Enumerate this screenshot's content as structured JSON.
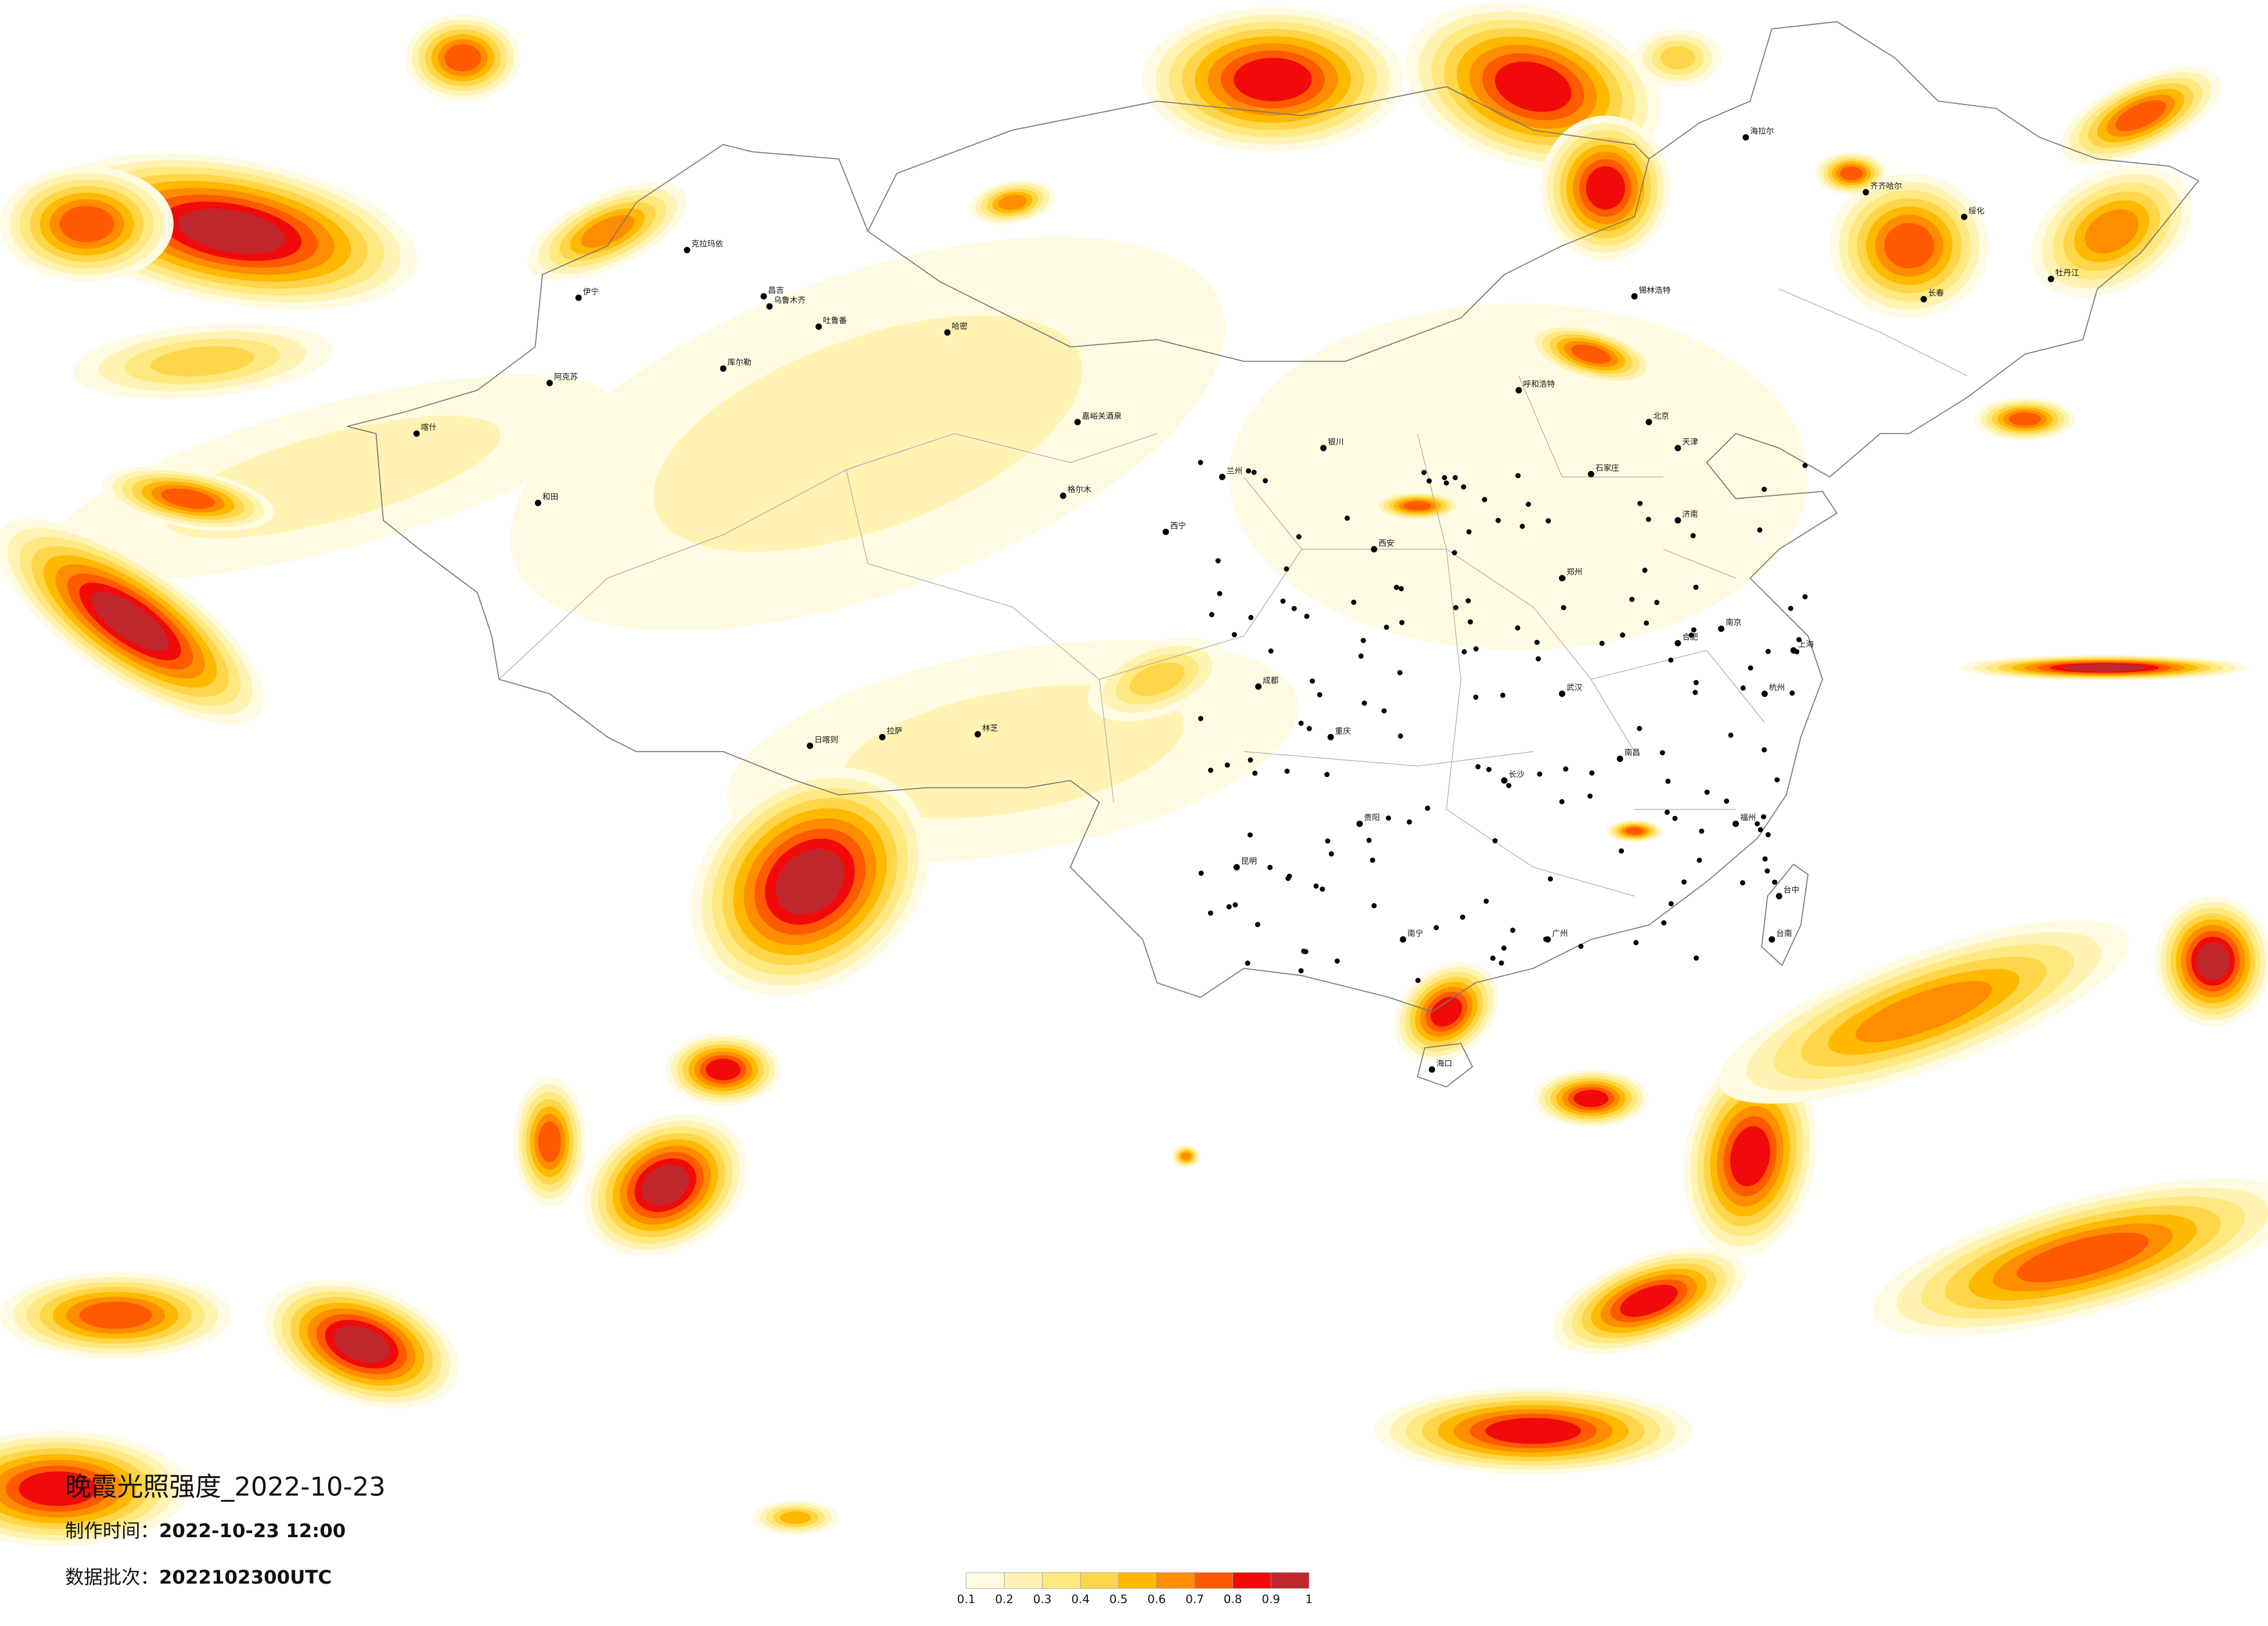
{
  "map": {
    "title": "晚霞光照强度_2022-10-23",
    "info": [
      {
        "label": "制作时间：",
        "value": "2022-10-23 12:00"
      },
      {
        "label": "数据批次：",
        "value": "2022102300UTC"
      }
    ],
    "colorbar": {
      "ticks": [
        0.1,
        0.2,
        0.3,
        0.4,
        0.5,
        0.6,
        0.7,
        0.8,
        0.9,
        1
      ],
      "colors": [
        "#fffbe3",
        "#fff3b4",
        "#ffe980",
        "#ffd54a",
        "#ffb900",
        "#ff8d00",
        "#ff5a00",
        "#f00a0a",
        "#c0272d"
      ]
    },
    "cities": [
      "克拉玛依",
      "伊宁",
      "昌吉",
      "乌鲁木齐",
      "吐鲁番",
      "哈密",
      "库尔勒",
      "阿克苏",
      "喀什",
      "和田",
      "嘉峪关酒泉",
      "格尔木",
      "西宁",
      "兰州",
      "银川",
      "呼和浩特",
      "锡林浩特",
      "海拉尔",
      "齐齐哈尔",
      "绥化",
      "牡丹江",
      "长春",
      "北京",
      "天津",
      "石家庄",
      "济南",
      "郑州",
      "西安",
      "日喀则",
      "拉萨",
      "林芝",
      "成都",
      "重庆",
      "贵阳",
      "昆明",
      "南宁",
      "广州",
      "长沙",
      "武汉",
      "南昌",
      "合肥",
      "南京",
      "上海",
      "杭州",
      "福州",
      "台中",
      "台南",
      "海口"
    ]
  }
}
